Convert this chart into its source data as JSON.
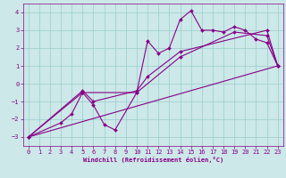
{
  "xlabel": "Windchill (Refroidissement éolien,°C)",
  "xlim": [
    -0.5,
    23.5
  ],
  "ylim": [
    -3.5,
    4.5
  ],
  "xticks": [
    0,
    1,
    2,
    3,
    4,
    5,
    6,
    7,
    8,
    9,
    10,
    11,
    12,
    13,
    14,
    15,
    16,
    17,
    18,
    19,
    20,
    21,
    22,
    23
  ],
  "yticks": [
    -3,
    -2,
    -1,
    0,
    1,
    2,
    3,
    4
  ],
  "background_color": "#cce8e8",
  "line_color": "#880088",
  "grid_color": "#99cccc",
  "series1_x": [
    0,
    3,
    4,
    5,
    6,
    7,
    8,
    10,
    11,
    12,
    13,
    14,
    15,
    16,
    17,
    18,
    19,
    20,
    21,
    22,
    23
  ],
  "series1_y": [
    -3.0,
    -2.2,
    -1.7,
    -0.5,
    -1.2,
    -2.3,
    -2.6,
    -0.5,
    2.4,
    1.7,
    2.0,
    3.6,
    4.1,
    3.0,
    3.0,
    2.9,
    3.2,
    3.0,
    2.5,
    2.3,
    1.0
  ],
  "series2_x": [
    0,
    5,
    6,
    10,
    11,
    14,
    22,
    23
  ],
  "series2_y": [
    -3.0,
    -0.4,
    -1.0,
    -0.4,
    0.4,
    1.8,
    3.0,
    1.0
  ],
  "series3_x": [
    0,
    23
  ],
  "series3_y": [
    -3.0,
    1.0
  ],
  "series4_x": [
    0,
    5,
    10,
    14,
    19,
    22,
    23
  ],
  "series4_y": [
    -3.0,
    -0.5,
    -0.5,
    1.5,
    2.9,
    2.7,
    1.0
  ],
  "tick_fontsize": 5,
  "xlabel_fontsize": 5,
  "linewidth": 0.8,
  "markersize": 2
}
